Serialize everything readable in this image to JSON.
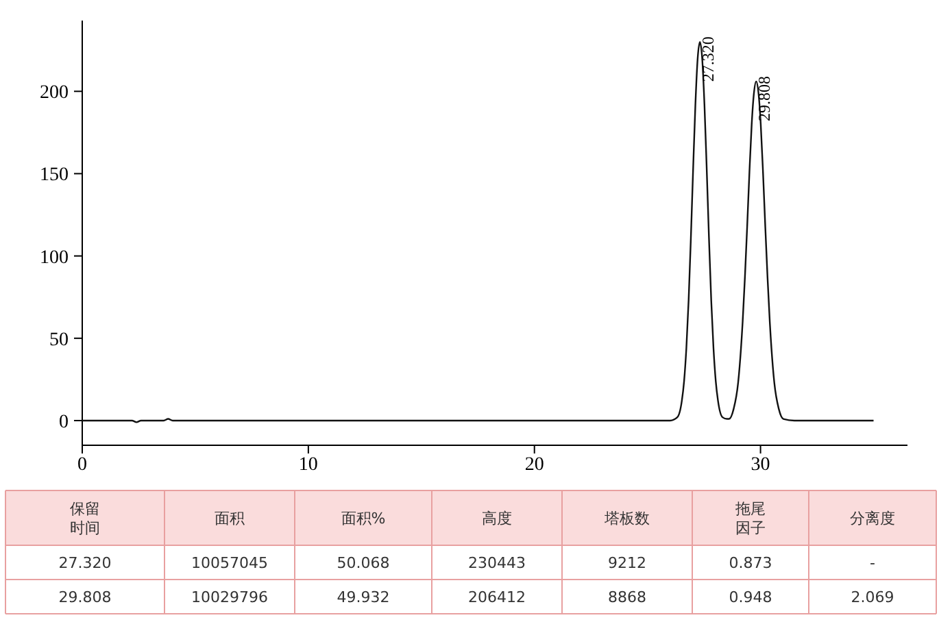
{
  "chart_data": [
    {
      "type": "line",
      "xlim": [
        0,
        36.5
      ],
      "ylim": [
        -15,
        243
      ],
      "xticks": [
        0,
        10,
        20,
        30
      ],
      "yticks": [
        0,
        50,
        100,
        150,
        200
      ],
      "grid": false,
      "line_style": "solid",
      "annotations": [
        {
          "text": "27.320",
          "x": 27.32,
          "y": 230
        },
        {
          "text": "29.808",
          "x": 29.808,
          "y": 206
        }
      ],
      "series": [
        {
          "color": "#111111",
          "x": [
            0,
            2.2,
            2.4,
            2.6,
            3.6,
            3.8,
            4.0,
            26.0,
            26.32,
            26.52,
            26.62,
            26.72,
            26.82,
            26.92,
            27.02,
            27.12,
            27.22,
            27.32,
            27.42,
            27.52,
            27.62,
            27.72,
            27.82,
            27.92,
            28.02,
            28.12,
            28.32,
            28.52,
            28.61,
            28.81,
            29.01,
            29.21,
            29.31,
            29.41,
            29.51,
            29.61,
            29.71,
            29.808,
            29.91,
            30.01,
            30.11,
            30.21,
            30.31,
            30.41,
            30.61,
            30.81,
            31.01,
            31.5,
            35
          ],
          "values": [
            0,
            0,
            -1,
            0,
            0,
            1,
            0,
            0,
            2,
            12,
            24,
            44,
            73,
            111,
            153,
            192,
            220,
            230,
            220,
            192,
            153,
            111,
            73,
            44,
            24,
            12,
            2,
            1,
            1,
            7,
            23,
            60,
            87,
            118,
            151,
            180,
            199,
            206,
            199,
            180,
            151,
            118,
            87,
            60,
            23,
            7,
            1,
            0,
            0
          ]
        }
      ]
    },
    {
      "type": "other",
      "categories": [
        "保留时间",
        "面积",
        "面积%",
        "高度",
        "塔板数",
        "拖尾因子",
        "分离度"
      ],
      "cell_labels": [
        [
          "27.320",
          "10057045",
          "50.068",
          "230443",
          "9212",
          "0.873",
          "-"
        ],
        [
          "29.808",
          "10029796",
          "49.932",
          "206412",
          "8868",
          "0.948",
          "2.069"
        ]
      ]
    }
  ]
}
